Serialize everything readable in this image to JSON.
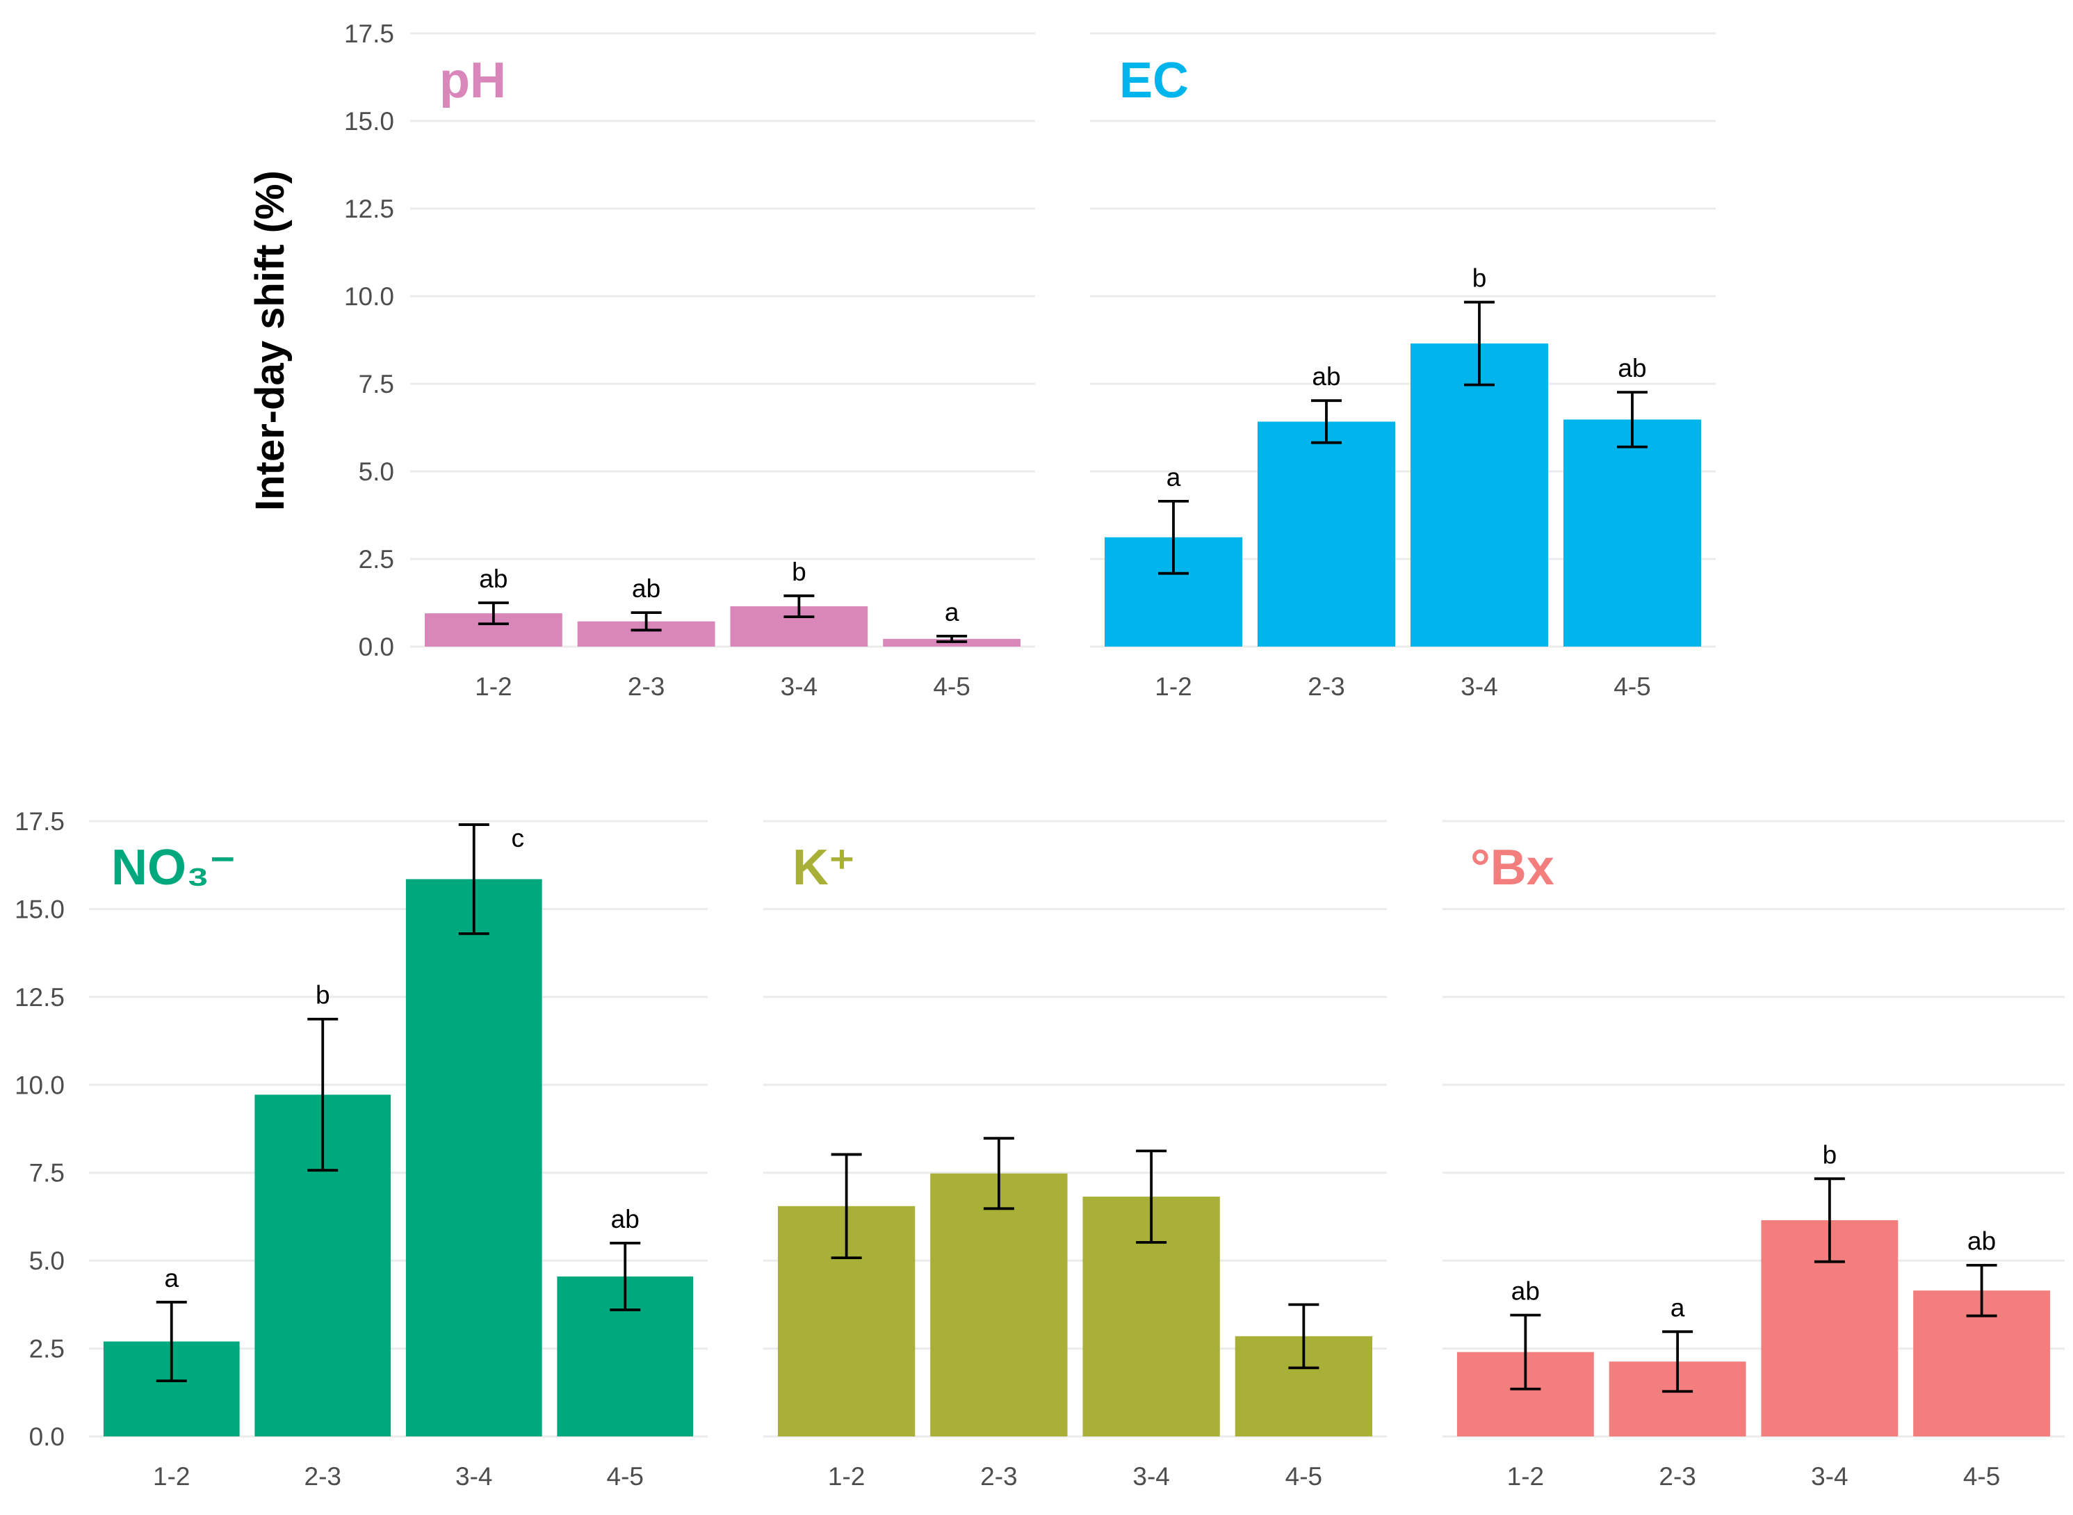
{
  "ylabel": "Inter-day shift (%)",
  "chart_data": [
    {
      "type": "bar",
      "title": "pH",
      "color": "#D986BA",
      "categories": [
        "1-2",
        "2-3",
        "3-4",
        "4-5"
      ],
      "values": [
        0.95,
        0.72,
        1.15,
        0.22
      ],
      "errors": [
        0.3,
        0.25,
        0.3,
        0.08
      ],
      "letters": [
        "ab",
        "ab",
        "b",
        "a"
      ],
      "ylim": [
        0,
        17.5
      ],
      "yticks": [
        "0.0",
        "2.5",
        "5.0",
        "7.5",
        "10.0",
        "12.5",
        "15.0",
        "17.5"
      ]
    },
    {
      "type": "bar",
      "title": "EC",
      "color": "#00B4EC",
      "categories": [
        "1-2",
        "2-3",
        "3-4",
        "4-5"
      ],
      "values": [
        3.12,
        6.42,
        8.65,
        6.48
      ],
      "errors": [
        1.03,
        0.6,
        1.18,
        0.78
      ],
      "letters": [
        "a",
        "ab",
        "b",
        "ab"
      ],
      "ylim": [
        0,
        17.5
      ],
      "yticks": []
    },
    {
      "type": "bar",
      "title": "NO₃⁻",
      "color": "#00A97D",
      "categories": [
        "1-2",
        "2-3",
        "3-4",
        "4-5"
      ],
      "values": [
        2.7,
        9.72,
        15.85,
        4.55
      ],
      "errors": [
        1.12,
        2.15,
        1.55,
        0.95
      ],
      "letters": [
        "a",
        "b",
        "c",
        "ab"
      ],
      "ylim": [
        0,
        17.5
      ],
      "yticks": [
        "0.0",
        "2.5",
        "5.0",
        "7.5",
        "10.0",
        "12.5",
        "15.0",
        "17.5"
      ]
    },
    {
      "type": "bar",
      "title": "K⁺",
      "color": "#A9B037",
      "categories": [
        "1-2",
        "2-3",
        "3-4",
        "4-5"
      ],
      "values": [
        6.55,
        7.48,
        6.82,
        2.85
      ],
      "errors": [
        1.47,
        1.0,
        1.3,
        0.9
      ],
      "letters": [
        "",
        "",
        "",
        ""
      ],
      "ylim": [
        0,
        17.5
      ],
      "yticks": []
    },
    {
      "type": "bar",
      "title": "°Bx",
      "color": "#F27E7E",
      "categories": [
        "1-2",
        "2-3",
        "3-4",
        "4-5"
      ],
      "values": [
        2.4,
        2.13,
        6.15,
        4.15
      ],
      "errors": [
        1.05,
        0.85,
        1.18,
        0.72
      ],
      "letters": [
        "ab",
        "a",
        "b",
        "ab"
      ],
      "ylim": [
        0,
        17.5
      ],
      "yticks": []
    }
  ]
}
